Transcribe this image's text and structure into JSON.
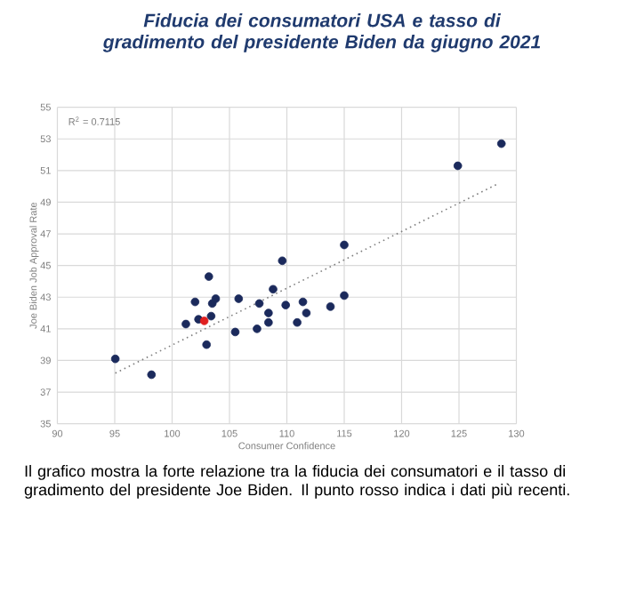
{
  "chart_data": {
    "type": "scatter",
    "title": "Fiducia dei consumatori USA e tasso di gradimento del presidente Biden da giugno 2021",
    "xlabel": "Consumer Confidence",
    "ylabel": "Joe Biden Job Approval Rate",
    "annotations": [
      "R$^{2}$ = 0.7115",
      "Il grafico mostra la forte relazione tra la fiducia dei consumatori e il tasso di gradimento del presidente Joe Biden. Il punto rosso indica i dati più recenti."
    ],
    "xlim": [
      90,
      130
    ],
    "ylim": [
      35,
      55
    ],
    "xticks": [
      90,
      95,
      100,
      105,
      110,
      115,
      120,
      125,
      130
    ],
    "yticks": [
      35,
      37,
      39,
      41,
      43,
      45,
      47,
      49,
      51,
      53,
      55
    ],
    "grid": true,
    "marker": "circle",
    "series": [
      {
        "color": "#1b2a5c",
        "x": [
          95.05,
          98.2,
          101.2,
          102.0,
          102.3,
          102.8,
          103.0,
          103.2,
          103.4,
          103.5,
          103.8,
          105.5,
          105.8,
          107.4,
          107.6,
          108.4,
          108.4,
          108.8,
          109.6,
          109.9,
          110.9,
          111.4,
          111.7,
          113.8,
          115.0,
          115.0,
          124.9,
          128.7
        ],
        "values": [
          39.1,
          38.1,
          41.3,
          42.7,
          41.6,
          41.5,
          40.0,
          44.3,
          41.8,
          42.6,
          42.9,
          40.8,
          42.9,
          41.0,
          42.6,
          41.4,
          42.0,
          43.5,
          45.3,
          42.5,
          41.4,
          42.7,
          42.0,
          42.4,
          43.1,
          46.3,
          51.3,
          52.7
        ],
        "colors": [
          "#1b2a5c",
          "#1b2a5c",
          "#1b2a5c",
          "#1b2a5c",
          "#1b2a5c",
          "#e02020",
          "#1b2a5c",
          "#1b2a5c",
          "#1b2a5c",
          "#1b2a5c",
          "#1b2a5c",
          "#1b2a5c",
          "#1b2a5c",
          "#1b2a5c",
          "#1b2a5c",
          "#1b2a5c",
          "#1b2a5c",
          "#1b2a5c",
          "#1b2a5c",
          "#1b2a5c",
          "#1b2a5c",
          "#1b2a5c",
          "#1b2a5c",
          "#1b2a5c",
          "#1b2a5c",
          "#1b2a5c",
          "#1b2a5c",
          "#1b2a5c"
        ]
      },
      {
        "type": "line",
        "color": "#7f7f7f",
        "line_style": "dotted",
        "marker": "none",
        "x": [
          95.05,
          128.5
        ],
        "values": [
          38.2,
          50.2
        ]
      }
    ]
  }
}
